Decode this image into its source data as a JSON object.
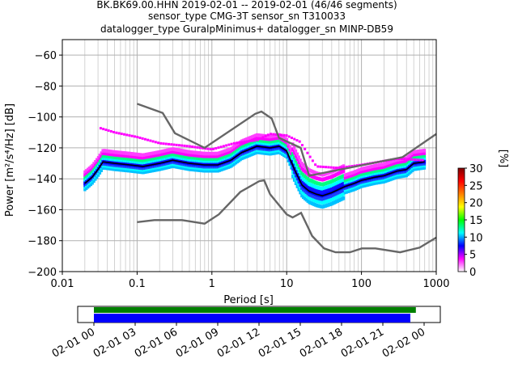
{
  "title": {
    "line1": "BK.BK69.00.HHN   2019-02-01 -- 2019-02-01  (46/46 segments)",
    "line2": "sensor_type CMG-3T sensor_sn T310033",
    "line3": "datalogger_type GuralpMinimus+ datalogger_sn MINP-DB59"
  },
  "chart_data": [
    {
      "type": "heatmap",
      "xlabel": "Period [s]",
      "ylabel": "Power [m²/s⁴/Hz] [dB]",
      "xscale": "log",
      "xlim": [
        0.01,
        1000
      ],
      "ylim": [
        -200,
        -50
      ],
      "x_tick_labels": [
        "0.01",
        "0.1",
        "1",
        "10",
        "100",
        "1000"
      ],
      "y_ticks": [
        -60,
        -80,
        -100,
        -120,
        -140,
        -160,
        -180,
        -200
      ],
      "grid": true,
      "colorbar": {
        "label": "[%]",
        "ticks": [
          0,
          5,
          10,
          15,
          20,
          25,
          30
        ],
        "range": [
          0,
          30
        ],
        "colormap": [
          "#ffffff",
          "#ff00ff",
          "#0000ff",
          "#00ffff",
          "#00ff00",
          "#ffff00",
          "#ff8000",
          "#ff0000",
          "#800000"
        ]
      },
      "series": [
        {
          "role": "noise model high",
          "color": "#666666",
          "points": [
            [
              0.1,
              -91.5
            ],
            [
              0.22,
              -97.4
            ],
            [
              0.32,
              -110.5
            ],
            [
              0.8,
              -120
            ],
            [
              3.8,
              -98
            ],
            [
              4.6,
              -96.5
            ],
            [
              6.3,
              -101
            ],
            [
              7.9,
              -113.5
            ],
            [
              15.4,
              -120
            ],
            [
              20,
              -138
            ],
            [
              354.8,
              -126
            ],
            [
              1000,
              -111
            ]
          ]
        },
        {
          "role": "noise model low",
          "color": "#666666",
          "points": [
            [
              0.1,
              -168
            ],
            [
              0.17,
              -166.7
            ],
            [
              0.4,
              -166.7
            ],
            [
              0.8,
              -169
            ],
            [
              1.24,
              -163
            ],
            [
              2.4,
              -148.5
            ],
            [
              4.3,
              -141.5
            ],
            [
              5,
              -141
            ],
            [
              6,
              -150
            ],
            [
              10,
              -163
            ],
            [
              12,
              -165
            ],
            [
              15.6,
              -162
            ],
            [
              21.9,
              -177
            ],
            [
              31.6,
              -185
            ],
            [
              45,
              -187.5
            ],
            [
              70,
              -187.5
            ],
            [
              101,
              -185
            ],
            [
              154,
              -185
            ],
            [
              328,
              -187.5
            ],
            [
              600,
              -184.5
            ],
            [
              1000,
              -178
            ]
          ]
        },
        {
          "role": "mean psd",
          "color": "#000000",
          "points": [
            [
              0.02,
              -143
            ],
            [
              0.025,
              -139
            ],
            [
              0.03,
              -134
            ],
            [
              0.035,
              -129
            ],
            [
              0.05,
              -130
            ],
            [
              0.08,
              -131
            ],
            [
              0.12,
              -132
            ],
            [
              0.2,
              -130
            ],
            [
              0.3,
              -128
            ],
            [
              0.5,
              -130
            ],
            [
              0.8,
              -131
            ],
            [
              1.2,
              -131
            ],
            [
              1.8,
              -128
            ],
            [
              2.5,
              -123
            ],
            [
              4,
              -119
            ],
            [
              6,
              -120
            ],
            [
              8,
              -119
            ],
            [
              10,
              -122
            ],
            [
              13,
              -135
            ],
            [
              16,
              -144
            ],
            [
              20,
              -148
            ],
            [
              25,
              -150
            ],
            [
              30,
              -151
            ],
            [
              40,
              -149
            ],
            [
              60,
              -145
            ],
            [
              80,
              -143
            ],
            [
              100,
              -141
            ],
            [
              150,
              -139
            ],
            [
              200,
              -138
            ],
            [
              300,
              -135
            ],
            [
              400,
              -134
            ],
            [
              500,
              -130
            ],
            [
              700,
              -129
            ]
          ]
        },
        {
          "role": "secondary psd envelope",
          "color": "#ff00ff",
          "points": [
            [
              0.031,
              -107
            ],
            [
              0.05,
              -110
            ],
            [
              0.1,
              -113
            ],
            [
              0.2,
              -117
            ],
            [
              0.5,
              -119
            ],
            [
              1,
              -121
            ],
            [
              2,
              -117
            ],
            [
              4,
              -115
            ],
            [
              6,
              -111
            ],
            [
              10,
              -112
            ],
            [
              15,
              -116
            ],
            [
              25,
              -132
            ],
            [
              50,
              -133
            ],
            [
              100,
              -131
            ],
            [
              300,
              -127
            ],
            [
              700,
              -128
            ]
          ]
        }
      ]
    },
    {
      "type": "timeline",
      "x_tick_labels": [
        "02-01 00",
        "02-01 03",
        "02-01 06",
        "02-01 09",
        "02-01 12",
        "02-01 15",
        "02-01 18",
        "02-01 21",
        "02-02 00"
      ],
      "bars": [
        {
          "role": "data availability",
          "color": "#008000",
          "start_hour": 0,
          "end_hour": 23.4
        },
        {
          "role": "processed segments",
          "color": "#0000ff",
          "start_hour": 0,
          "end_hour": 23.0
        }
      ]
    }
  ]
}
